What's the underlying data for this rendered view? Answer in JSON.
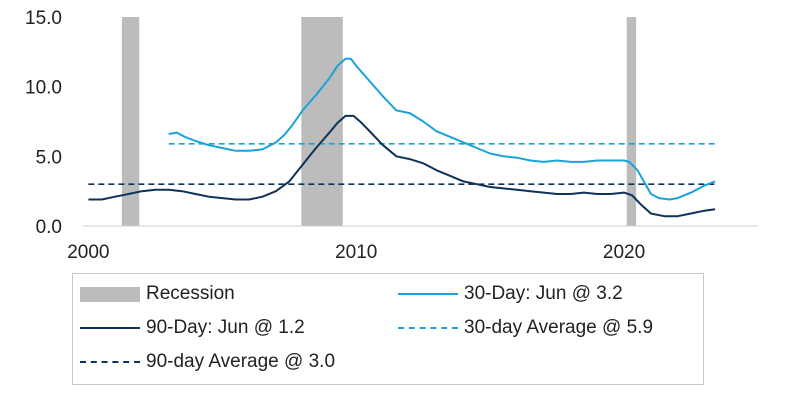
{
  "chart_data": {
    "type": "line",
    "title": "",
    "xlabel": "",
    "ylabel": "",
    "xlim": [
      1999.8,
      2025.0
    ],
    "ylim": [
      0,
      15
    ],
    "x_ticks": [
      "2000",
      "2010",
      "2020"
    ],
    "x_tick_values": [
      2000,
      2010,
      2020
    ],
    "y_ticks": [
      "0.0",
      "5.0",
      "10.0",
      "15.0"
    ],
    "y_tick_values": [
      0,
      5,
      10,
      15
    ],
    "grid": false,
    "legend_placement": "bottom",
    "recessions": [
      {
        "start": 2001.25,
        "end": 2001.9
      },
      {
        "start": 2007.95,
        "end": 2009.5
      },
      {
        "start": 2020.1,
        "end": 2020.45
      }
    ],
    "series": [
      {
        "name": "30-Day: Jun @ 3.2",
        "color": "#1aa3d9",
        "style": "solid",
        "x": [
          2003.0,
          2003.3,
          2003.6,
          2004.0,
          2004.5,
          2005.0,
          2005.5,
          2006.0,
          2006.5,
          2007.0,
          2007.3,
          2007.6,
          2008.0,
          2008.5,
          2009.0,
          2009.3,
          2009.6,
          2009.8,
          2010.0,
          2010.5,
          2011.0,
          2011.5,
          2012.0,
          2012.5,
          2013.0,
          2013.5,
          2014.0,
          2014.5,
          2015.0,
          2015.5,
          2016.0,
          2016.5,
          2017.0,
          2017.5,
          2018.0,
          2018.5,
          2019.0,
          2019.5,
          2020.0,
          2020.2,
          2020.5,
          2020.8,
          2021.0,
          2021.3,
          2021.7,
          2022.0,
          2022.5,
          2023.0,
          2023.4
        ],
        "values": [
          6.6,
          6.7,
          6.4,
          6.1,
          5.8,
          5.6,
          5.4,
          5.4,
          5.5,
          6.0,
          6.5,
          7.2,
          8.3,
          9.4,
          10.6,
          11.5,
          12.0,
          12.0,
          11.5,
          10.4,
          9.3,
          8.3,
          8.1,
          7.5,
          6.8,
          6.4,
          6.0,
          5.6,
          5.2,
          5.0,
          4.9,
          4.7,
          4.6,
          4.7,
          4.6,
          4.6,
          4.7,
          4.7,
          4.7,
          4.6,
          4.0,
          3.0,
          2.3,
          2.0,
          1.9,
          2.0,
          2.4,
          2.9,
          3.2
        ]
      },
      {
        "name": "90-Day: Jun @ 1.2",
        "color": "#0f3258",
        "style": "solid",
        "x": [
          2000.0,
          2000.5,
          2001.0,
          2001.5,
          2002.0,
          2002.5,
          2003.0,
          2003.5,
          2004.0,
          2004.5,
          2005.0,
          2005.5,
          2006.0,
          2006.5,
          2007.0,
          2007.5,
          2008.0,
          2008.5,
          2009.0,
          2009.3,
          2009.6,
          2009.9,
          2010.2,
          2010.6,
          2011.0,
          2011.5,
          2012.0,
          2012.5,
          2013.0,
          2013.5,
          2014.0,
          2014.5,
          2015.0,
          2015.5,
          2016.0,
          2016.5,
          2017.0,
          2017.5,
          2018.0,
          2018.5,
          2019.0,
          2019.5,
          2020.0,
          2020.3,
          2020.6,
          2021.0,
          2021.5,
          2022.0,
          2022.5,
          2023.0,
          2023.4
        ],
        "values": [
          1.9,
          1.9,
          2.1,
          2.3,
          2.5,
          2.6,
          2.6,
          2.5,
          2.3,
          2.1,
          2.0,
          1.9,
          1.9,
          2.1,
          2.5,
          3.2,
          4.4,
          5.6,
          6.7,
          7.4,
          7.9,
          7.9,
          7.4,
          6.6,
          5.8,
          5.0,
          4.8,
          4.5,
          4.0,
          3.6,
          3.2,
          3.0,
          2.8,
          2.7,
          2.6,
          2.5,
          2.4,
          2.3,
          2.3,
          2.4,
          2.3,
          2.3,
          2.4,
          2.2,
          1.6,
          0.9,
          0.7,
          0.7,
          0.9,
          1.1,
          1.2
        ]
      }
    ],
    "averages": [
      {
        "name": "30-day Average @ 5.9",
        "value": 5.9,
        "color": "#1aa3d9",
        "style": "dashed",
        "x_start": 2003.0,
        "x_end": 2023.5
      },
      {
        "name": "90-day Average @ 3.0",
        "value": 3.0,
        "color": "#0f3258",
        "style": "dashed",
        "x_start": 2000.0,
        "x_end": 2023.5
      }
    ],
    "legend": [
      {
        "label": "Recession",
        "kind": "rect",
        "color": "#bcbcbc"
      },
      {
        "label": "30-Day: Jun @ 3.2",
        "kind": "solid",
        "color": "#1aa3d9"
      },
      {
        "label": "90-Day: Jun @ 1.2",
        "kind": "solid",
        "color": "#0f3258"
      },
      {
        "label": "30-day Average @ 5.9",
        "kind": "dash",
        "color": "#1aa3d9"
      },
      {
        "label": "90-day Average @ 3.0",
        "kind": "dash",
        "color": "#0f3258"
      }
    ]
  }
}
